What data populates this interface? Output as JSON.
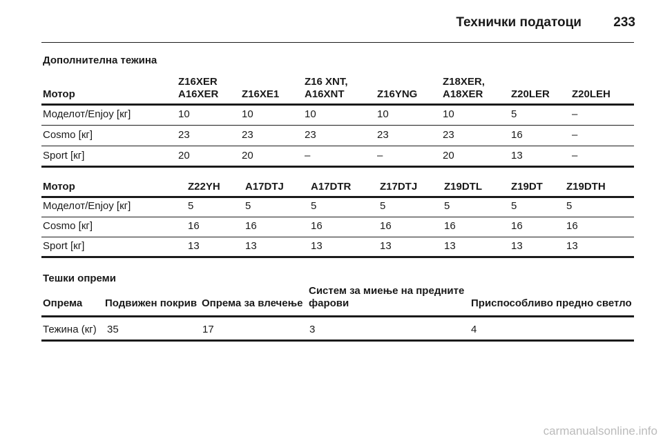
{
  "header": {
    "title": "Технички податоци",
    "page": "233"
  },
  "sections": [
    {
      "title": "Дополнителна тежина",
      "tables": [
        {
          "columns": [
            [
              "Мотор"
            ],
            [
              "Z16XER",
              "A16XER"
            ],
            [
              "Z16XE1"
            ],
            [
              "Z16 XNT,",
              "A16XNT"
            ],
            [
              "Z16YNG"
            ],
            [
              "Z18XER,",
              "A18XER"
            ],
            [
              "Z20LER"
            ],
            [
              "Z20LEH"
            ]
          ],
          "rows": [
            [
              "Моделот/Enjoy [кг]",
              "10",
              "10",
              "10",
              "10",
              "10",
              "5",
              "–"
            ],
            [
              "Cosmo [кг]",
              "23",
              "23",
              "23",
              "23",
              "23",
              "16",
              "–"
            ],
            [
              "Sport [кг]",
              "20",
              "20",
              "–",
              "–",
              "20",
              "13",
              "–"
            ]
          ]
        },
        {
          "columns": [
            [
              "Мотор"
            ],
            [
              "Z22YH"
            ],
            [
              "A17DTJ"
            ],
            [
              "A17DTR"
            ],
            [
              "Z17DTJ"
            ],
            [
              "Z19DTL"
            ],
            [
              "Z19DT"
            ],
            [
              "Z19DTH"
            ]
          ],
          "rows": [
            [
              "Моделот/Enjoy [кг]",
              "5",
              "5",
              "5",
              "5",
              "5",
              "5",
              "5"
            ],
            [
              "Cosmo [кг]",
              "16",
              "16",
              "16",
              "16",
              "16",
              "16",
              "16"
            ],
            [
              "Sport [кг]",
              "13",
              "13",
              "13",
              "13",
              "13",
              "13",
              "13"
            ]
          ]
        }
      ]
    },
    {
      "title": "Тешки опреми",
      "tables": [
        {
          "columns": [
            [
              "Опрема"
            ],
            [
              "Подвижен покрив"
            ],
            [
              "Опрема за влечење"
            ],
            [
              "Систем за миење на предните",
              "фарови"
            ],
            [
              "Приспособливо предно светло"
            ]
          ],
          "rows": [
            [
              "Тежина (кг)",
              "35",
              "17",
              "3",
              "4"
            ]
          ]
        }
      ]
    }
  ],
  "watermark": "carmanualsonline.info"
}
